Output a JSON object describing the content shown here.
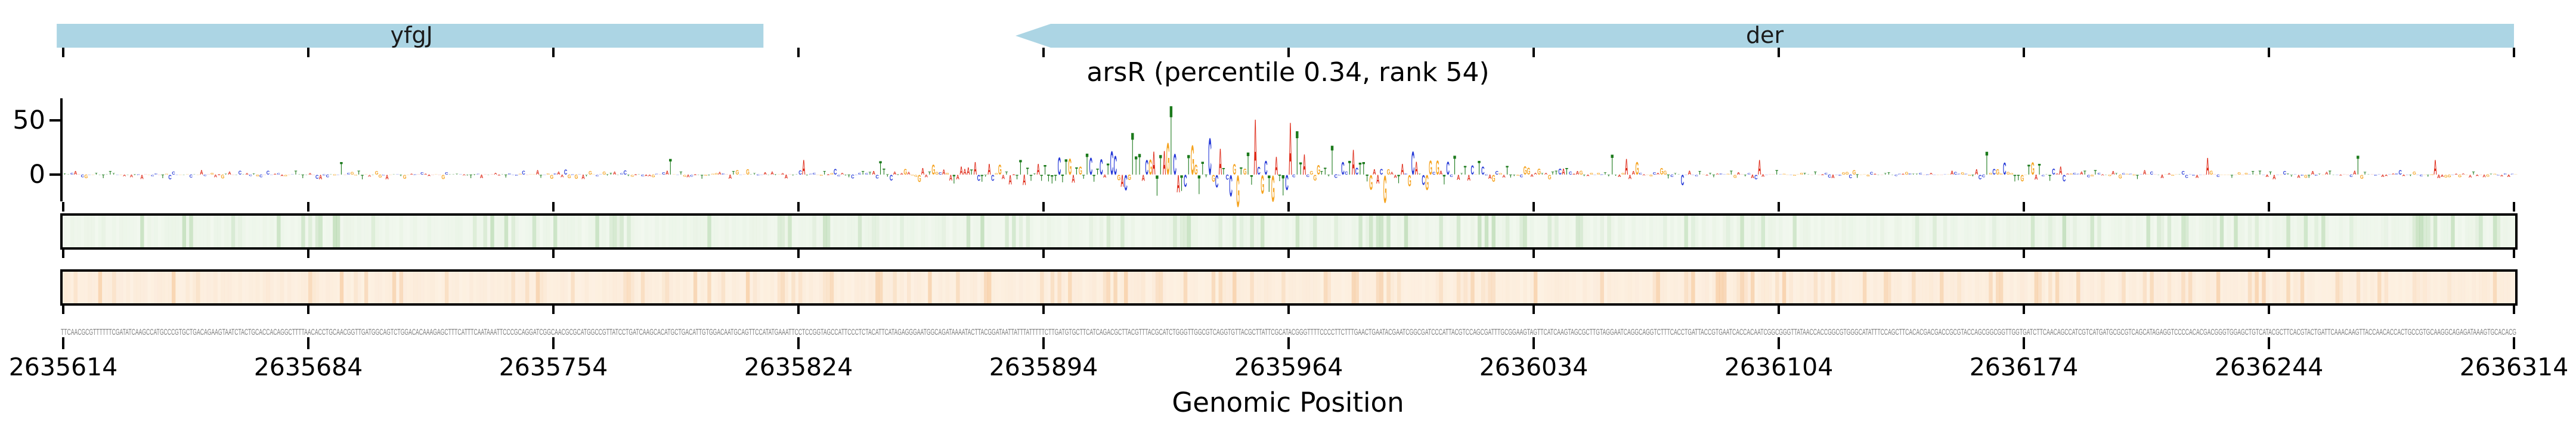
{
  "figure": {
    "title": "arsR (percentile 0.34, rank 54)",
    "x_axis_label": "Genomic Position"
  },
  "y_axis": {
    "ticks": [
      "50",
      "0"
    ],
    "tick_values": [
      50,
      0
    ]
  },
  "tracks": [
    {
      "id": "upper-heatmap-track",
      "base_fill": "#f2f8ef",
      "stripe_color": "#7dbb72",
      "border": "#000000"
    },
    {
      "id": "lower-heatmap-track",
      "base_fill": "#fdf1e3",
      "stripe_color": "#f0a45c",
      "border": "#000000"
    }
  ],
  "gene_track_color": "#acd5e4",
  "chart_data": {
    "type": "genomic-attribution-logo",
    "title": "arsR (percentile 0.34, rank 54)",
    "xlabel": "Genomic Position",
    "x_start": 2635614,
    "x_end": 2636314,
    "x_ticks": [
      2635614,
      2635684,
      2635754,
      2635824,
      2635894,
      2635964,
      2636034,
      2636104,
      2636174,
      2636244,
      2636314
    ],
    "y_ticks": [
      0,
      50
    ],
    "ylim_visible": [
      -30,
      70
    ],
    "legend": "none",
    "grid": "off",
    "base_colors": {
      "A": "#df2a18",
      "C": "#2438d7",
      "G": "#f5a31f",
      "T": "#1b7a1b"
    },
    "genes": [
      {
        "label": "yfgJ",
        "start": 2635613,
        "end": 2635814,
        "strand": "none"
      },
      {
        "label": "der",
        "start": 2635886,
        "end": 2636314,
        "strand": "-"
      }
    ],
    "peaks": [
      {
        "pos": 79,
        "value": 12,
        "base": "T"
      },
      {
        "pos": 173,
        "value": 15,
        "base": "T"
      },
      {
        "pos": 211,
        "value": 14,
        "base": "A"
      },
      {
        "pos": 233,
        "value": 13,
        "base": "T"
      },
      {
        "pos": 260,
        "value": 12,
        "base": "A"
      },
      {
        "pos": 292,
        "value": 20,
        "base": "T"
      },
      {
        "pos": 300,
        "value": 18,
        "base": "C"
      },
      {
        "pos": 305,
        "value": 40,
        "base": "T"
      },
      {
        "pos": 311,
        "value": 22,
        "base": "A"
      },
      {
        "pos": 315,
        "value": 30,
        "base": "G"
      },
      {
        "pos": 316,
        "value": 66,
        "base": "T"
      },
      {
        "pos": 319,
        "value": -15,
        "base": "T"
      },
      {
        "pos": 324,
        "value": -18,
        "base": "T"
      },
      {
        "pos": 327,
        "value": 35,
        "base": "C"
      },
      {
        "pos": 330,
        "value": 25,
        "base": "A"
      },
      {
        "pos": 333,
        "value": -20,
        "base": "C"
      },
      {
        "pos": 335,
        "value": -30,
        "base": "G"
      },
      {
        "pos": 340,
        "value": 53,
        "base": "A"
      },
      {
        "pos": 345,
        "value": -25,
        "base": "G"
      },
      {
        "pos": 350,
        "value": 50,
        "base": "A"
      },
      {
        "pos": 352,
        "value": 42,
        "base": "T"
      },
      {
        "pos": 362,
        "value": 28,
        "base": "T"
      },
      {
        "pos": 368,
        "value": 24,
        "base": "A"
      },
      {
        "pos": 377,
        "value": -26,
        "base": "G"
      },
      {
        "pos": 385,
        "value": 22,
        "base": "C"
      },
      {
        "pos": 397,
        "value": 18,
        "base": "T"
      },
      {
        "pos": 442,
        "value": 19,
        "base": "T"
      },
      {
        "pos": 446,
        "value": 15,
        "base": "A"
      },
      {
        "pos": 449,
        "value": 12,
        "base": "G"
      },
      {
        "pos": 462,
        "value": -10,
        "base": "C"
      },
      {
        "pos": 484,
        "value": 14,
        "base": "A"
      },
      {
        "pos": 549,
        "value": 22,
        "base": "T"
      },
      {
        "pos": 612,
        "value": 16,
        "base": "A"
      },
      {
        "pos": 655,
        "value": 18,
        "base": "T"
      },
      {
        "pos": 677,
        "value": 14,
        "base": "A"
      }
    ],
    "sequence": "TTCAACGCGTTTTTTCGATATCAAGCCATGCCCGTGCTGACAGAAGTAATCTACTGCACCACAGGCTTTTAACACCTGCAACGGTTGATGGCAGTCTGGACACAAAGAGCTTTCATTTCAATAAATTCCCGCAGGATCGGCAACGCGCATGGCCGTTATCCTGATCAAGCACATGCTGACATTGTGGACAATGCAGTTCCATATGAAATTCCTCCGGTAGCCATTCCCTCTACATTCATAGAGGGAATGGCAGATAAAATACTTACGGATAATTATTTATTTTTCTTGATGTGCTTCATCAGACGCTTACGTTTACGCATCTGGGTTGGCGTCAGGTGTTACGCTTATTCGCATACGGGTTTTCCCCTTCTTTGAACTGAATACGAATCGGCGATCCCATTACGTCCAGCGATTTGCGGAAGTAGTTCATCAAGTAGCGCTTGTAGGAATCAGGCAGGTCTTTCACCTGATTACCGTGAATCACCACAATCGGCGGGTTATAACCACCGGCGTGGGCATATTTCCAGCTTCACACGACGACCGCGTACCAGCGGCGGTTGGTGATCTTCAACAGCCATCGTCATGATGCGCGTCAGCATAGAGGTCCCCACACGACGGGTGGAGCTGTCATACGCTTCACGTACTGATTCAAACAAGTTACCAACACCACTGCCGTGCAAGGCAGAGATAAAGTGCACACGAG"
  }
}
